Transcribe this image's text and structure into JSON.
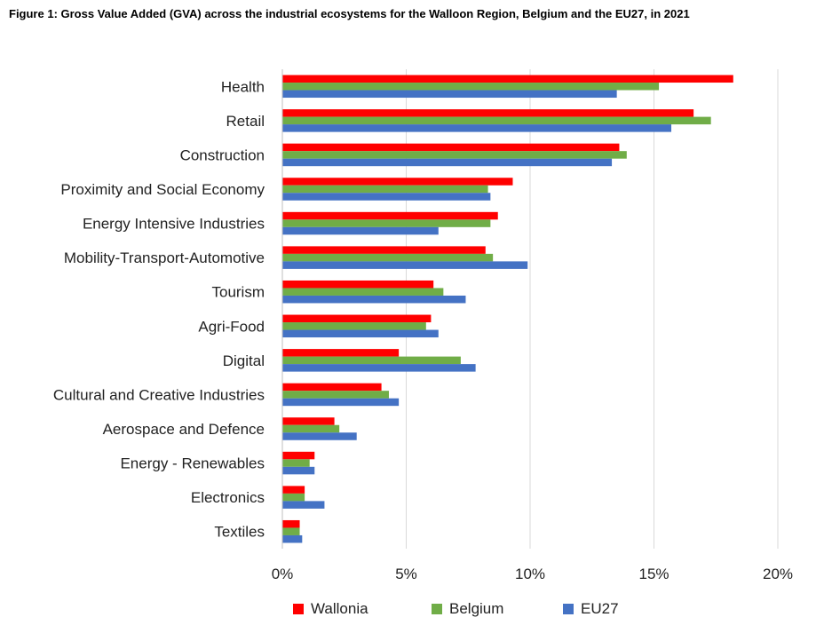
{
  "chart_data": {
    "type": "bar",
    "orientation": "horizontal",
    "title": "Figure 1: Gross Value Added (GVA) across the industrial ecosystems for the Walloon Region, Belgium and the EU27, in 2021",
    "xlabel": "",
    "ylabel": "",
    "xlim": [
      0,
      0.2
    ],
    "xticks": [
      {
        "value": 0,
        "label": "0%"
      },
      {
        "value": 0.05,
        "label": "5%"
      },
      {
        "value": 0.1,
        "label": "10%"
      },
      {
        "value": 0.15,
        "label": "15%"
      },
      {
        "value": 0.2,
        "label": "20%"
      }
    ],
    "grid": true,
    "legend_position": "bottom",
    "categories": [
      "Health",
      "Retail",
      "Construction",
      "Proximity and Social Economy",
      "Energy Intensive Industries",
      "Mobility-Transport-Automotive",
      "Tourism",
      "Agri-Food",
      "Digital",
      "Cultural and Creative Industries",
      "Aerospace and Defence",
      "Energy - Renewables",
      "Electronics",
      "Textiles"
    ],
    "series": [
      {
        "name": "Wallonia",
        "color": "#ff0000",
        "values": [
          0.182,
          0.166,
          0.136,
          0.093,
          0.087,
          0.082,
          0.061,
          0.06,
          0.047,
          0.04,
          0.021,
          0.013,
          0.009,
          0.007
        ]
      },
      {
        "name": "Belgium",
        "color": "#70ad47",
        "values": [
          0.152,
          0.173,
          0.139,
          0.083,
          0.084,
          0.085,
          0.065,
          0.058,
          0.072,
          0.043,
          0.023,
          0.011,
          0.009,
          0.007
        ]
      },
      {
        "name": "EU27",
        "color": "#4472c4",
        "values": [
          0.135,
          0.157,
          0.133,
          0.084,
          0.063,
          0.099,
          0.074,
          0.063,
          0.078,
          0.047,
          0.03,
          0.013,
          0.017,
          0.008
        ]
      }
    ]
  }
}
